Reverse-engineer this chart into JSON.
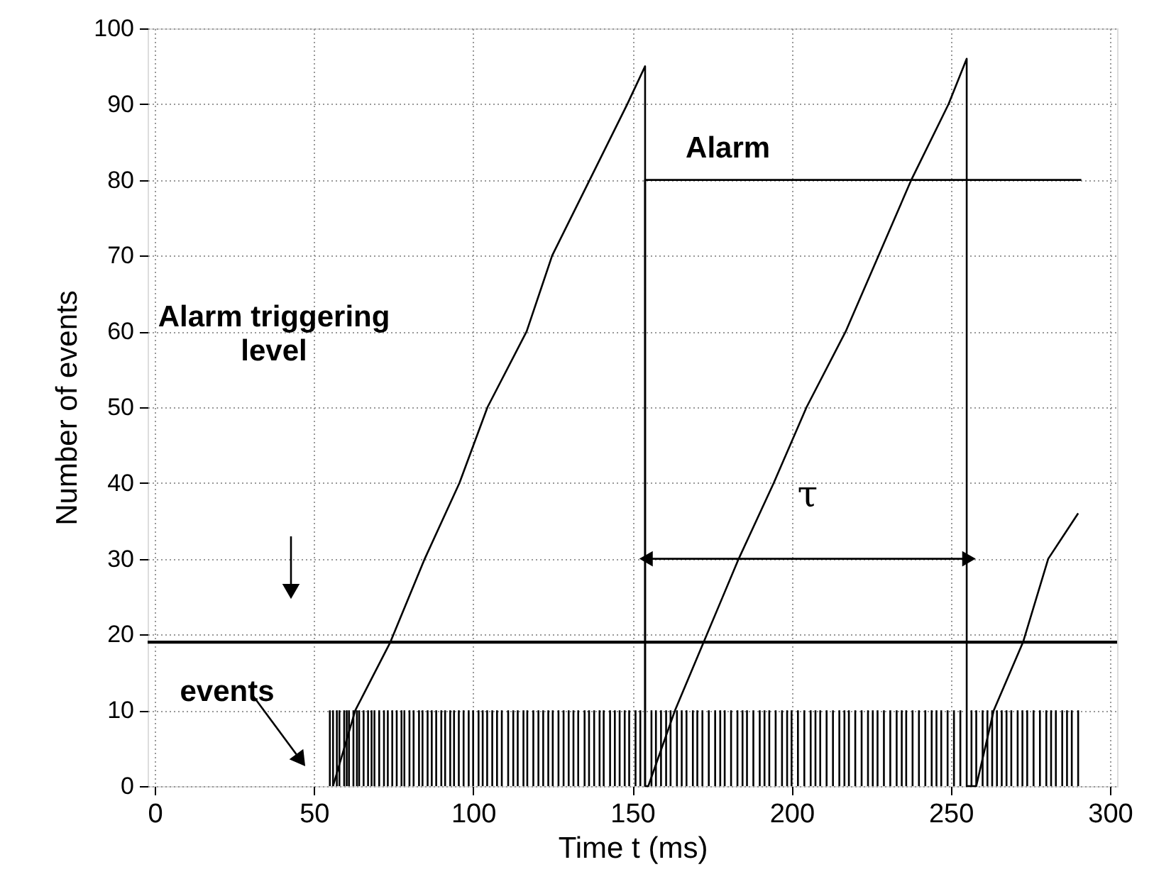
{
  "chart_data": {
    "type": "line",
    "xlabel": "Time  t  (ms)",
    "ylabel": "Number of events",
    "xlim": [
      0,
      300
    ],
    "ylim": [
      0,
      100
    ],
    "xticks": [
      0,
      50,
      100,
      150,
      200,
      250,
      300
    ],
    "yticks": [
      0,
      10,
      20,
      30,
      40,
      50,
      60,
      70,
      80,
      90,
      100
    ],
    "grid": true,
    "line_style": "solid",
    "marker": "none",
    "series": [
      {
        "type": "bar",
        "color": "#000000",
        "x": [
          55,
          56,
          57.2,
          58,
          59.5,
          60.3,
          61,
          62.4,
          63.5,
          64.2,
          65.6,
          67,
          68.1,
          69,
          70.5,
          72,
          73.2,
          74.6,
          76,
          77.5,
          78.4,
          80,
          81.3,
          83,
          84.1,
          85.7,
          87,
          88.4,
          90,
          91.2,
          92.8,
          94,
          95.5,
          97,
          98.6,
          100,
          101.7,
          103,
          104.4,
          106,
          107.5,
          109,
          111,
          112.6,
          114,
          115.8,
          117,
          118.9,
          120.5,
          122,
          123.6,
          125,
          126.8,
          128.4,
          130,
          131.5,
          133,
          135,
          136.4,
          138,
          139.7,
          141,
          143,
          144.5,
          146,
          147.6,
          149,
          151,
          152.5,
          154,
          156,
          157.4,
          159,
          160.6,
          162,
          164,
          165.5,
          167,
          169,
          170.4,
          172,
          174,
          176,
          177.6,
          179,
          181,
          183,
          184.6,
          186,
          188,
          190,
          191.5,
          193,
          195,
          197,
          198.6,
          200,
          202,
          204,
          206,
          207.5,
          209,
          211,
          213,
          215,
          216.6,
          218,
          220,
          222,
          224,
          225.5,
          227,
          229,
          231,
          233,
          234.6,
          236,
          238,
          240,
          242,
          244,
          245.5,
          247,
          249,
          251,
          253,
          255,
          256.5,
          258,
          260,
          261.5,
          263,
          264.5,
          266,
          267.5,
          269,
          271,
          272.5,
          274,
          276,
          278,
          280,
          281.5,
          283,
          285,
          286.5,
          288,
          290
        ],
        "values": [
          10,
          10,
          10,
          10,
          10,
          10,
          10,
          10,
          10,
          10,
          10,
          10,
          10,
          10,
          10,
          10,
          10,
          10,
          10,
          10,
          10,
          10,
          10,
          10,
          10,
          10,
          10,
          10,
          10,
          10,
          10,
          10,
          10,
          10,
          10,
          10,
          10,
          10,
          10,
          10,
          10,
          10,
          10,
          10,
          10,
          10,
          10,
          10,
          10,
          10,
          10,
          10,
          10,
          10,
          10,
          10,
          10,
          10,
          10,
          10,
          10,
          10,
          10,
          10,
          10,
          10,
          10,
          10,
          10,
          null,
          10,
          10,
          10,
          10,
          10,
          10,
          10,
          10,
          10,
          10,
          10,
          10,
          10,
          10,
          10,
          10,
          10,
          10,
          10,
          10,
          10,
          10,
          10,
          10,
          10,
          10,
          10,
          10,
          10,
          10,
          10,
          10,
          10,
          10,
          10,
          10,
          10,
          10,
          10,
          10,
          10,
          10,
          10,
          10,
          10,
          10,
          10,
          10,
          10,
          10,
          10,
          10,
          10,
          10,
          10,
          10,
          null,
          10,
          10,
          10,
          10,
          10,
          10,
          10,
          10,
          10,
          10,
          10,
          10,
          10,
          10,
          10,
          10,
          10,
          10,
          10,
          10,
          10
        ]
      },
      {
        "color": "#000000",
        "x": [
          56,
          63,
          74,
          84.8,
          95.7,
          104.5,
          116.8,
          124.8,
          136.6,
          148.4,
          154,
          154,
          155,
          163.4,
          172.4,
          183.4,
          194.4,
          204.7,
          217,
          227.3,
          237.6,
          249.3,
          255,
          255,
          258,
          263.5,
          272.7,
          280.6,
          290
        ],
        "values": [
          0,
          10,
          19,
          30,
          40,
          50,
          60,
          70,
          80,
          90,
          95,
          0,
          0,
          10,
          19,
          30,
          40,
          50,
          60,
          70,
          80,
          90,
          96,
          0,
          0,
          10,
          19,
          30,
          36
        ]
      },
      {
        "color": "#000000",
        "x": [
          154,
          154,
          291
        ],
        "values": [
          0,
          80,
          80
        ]
      },
      {
        "color": "#000000",
        "marker": "triangle",
        "x": [
          155,
          255
        ],
        "values": [
          30,
          30
        ]
      }
    ],
    "ref_lines": [
      {
        "axis": "y",
        "value": 19,
        "color": "#000000"
      }
    ],
    "annotations": [
      "Alarm triggering\nlevel",
      "events",
      {
        "text": "Alarm",
        "x": 180,
        "y": 80
      },
      {
        "text": "τ",
        "x": 205,
        "y": 30
      }
    ]
  }
}
